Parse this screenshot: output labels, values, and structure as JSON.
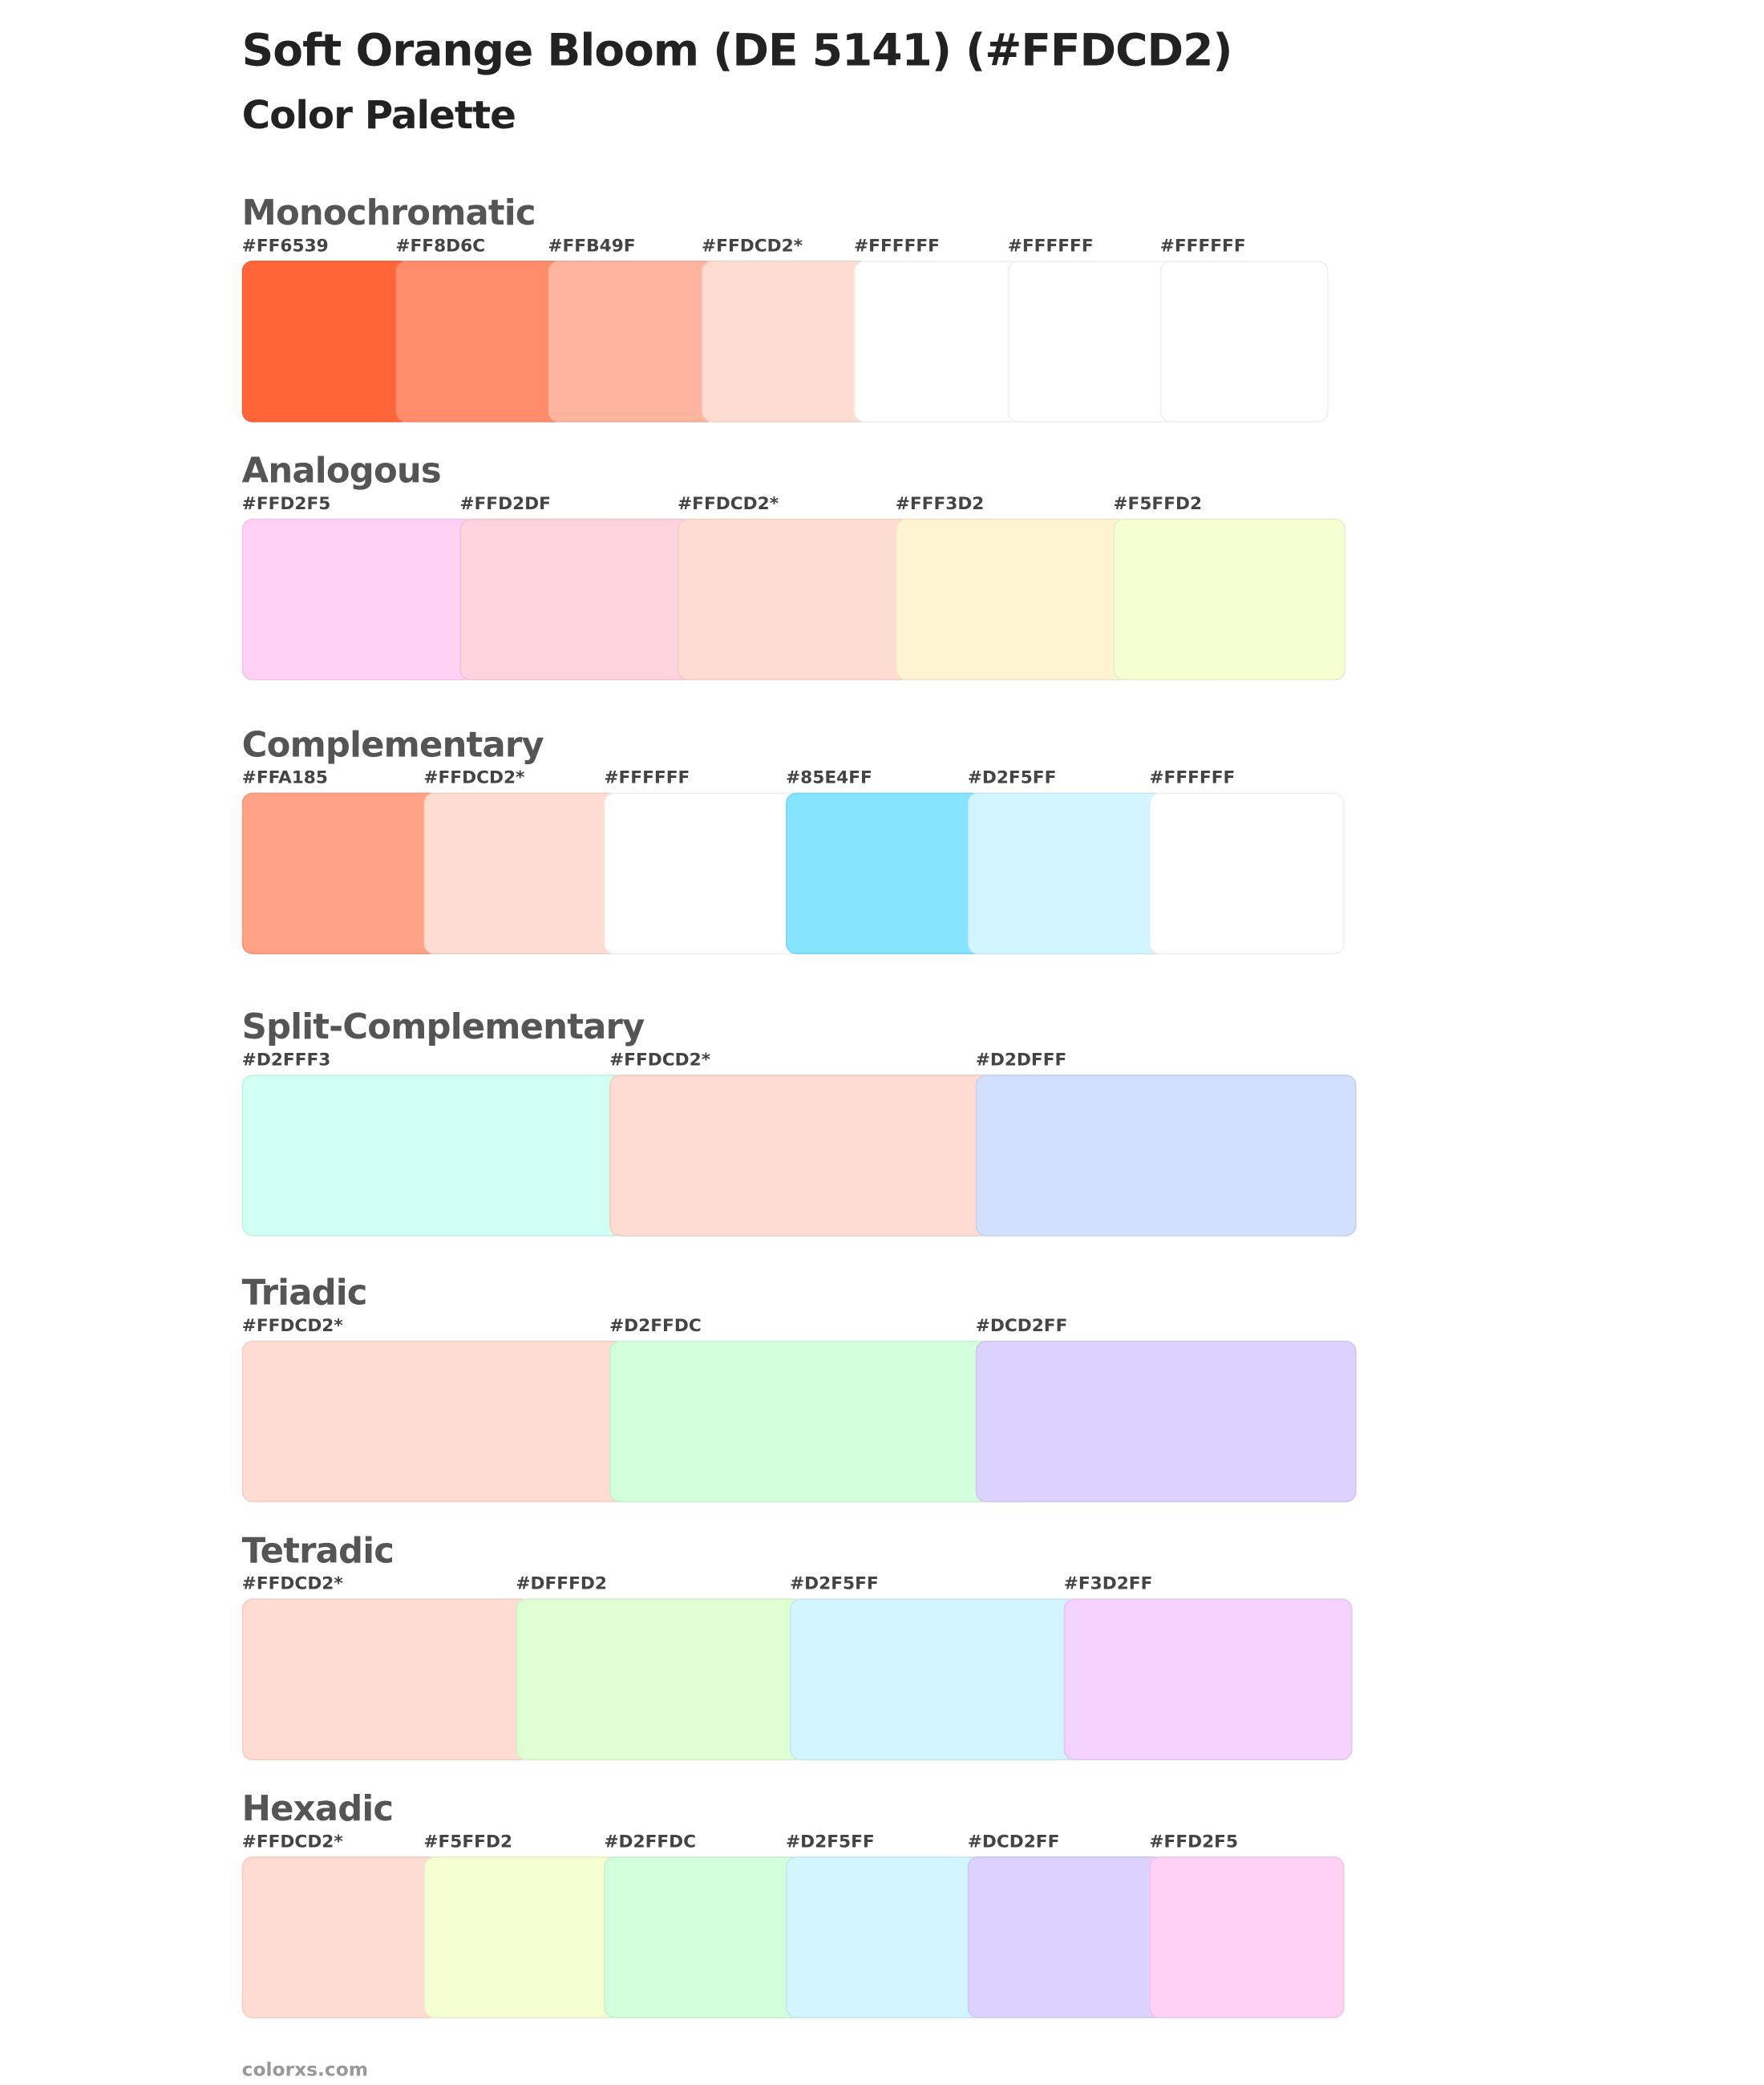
{
  "title": "Soft Orange Bloom (DE 5141) (#FFDCD2)",
  "subtitle": "Color Palette",
  "footer": "colorxs.com",
  "sections": [
    {
      "id": "monochromatic",
      "heading": "Monochromatic",
      "colors": [
        {
          "label": "#FF6539",
          "hex": "#FF6539"
        },
        {
          "label": "#FF8D6C",
          "hex": "#FF8D6C"
        },
        {
          "label": "#FFB49F",
          "hex": "#FFB49F"
        },
        {
          "label": "#FFDCD2*",
          "hex": "#FFDCD2"
        },
        {
          "label": "#FFFFFF",
          "hex": "#FFFFFF"
        },
        {
          "label": "#FFFFFF",
          "hex": "#FFFFFF"
        },
        {
          "label": "#FFFFFF",
          "hex": "#FFFFFF"
        }
      ]
    },
    {
      "id": "analogous",
      "heading": "Analogous",
      "colors": [
        {
          "label": "#FFD2F5",
          "hex": "#FFD2F5"
        },
        {
          "label": "#FFD2DF",
          "hex": "#FFD2DF"
        },
        {
          "label": "#FFDCD2*",
          "hex": "#FFDCD2"
        },
        {
          "label": "#FFF3D2",
          "hex": "#FFF3D2"
        },
        {
          "label": "#F5FFD2",
          "hex": "#F5FFD2"
        }
      ]
    },
    {
      "id": "complementary",
      "heading": "Complementary",
      "colors": [
        {
          "label": "#FFA185",
          "hex": "#FFA185"
        },
        {
          "label": "#FFDCD2*",
          "hex": "#FFDCD2"
        },
        {
          "label": "#FFFFFF",
          "hex": "#FFFFFF"
        },
        {
          "label": "#85E4FF",
          "hex": "#85E4FF"
        },
        {
          "label": "#D2F5FF",
          "hex": "#D2F5FF"
        },
        {
          "label": "#FFFFFF",
          "hex": "#FFFFFF"
        }
      ]
    },
    {
      "id": "split-complementary",
      "heading": "Split-Complementary",
      "colors": [
        {
          "label": "#D2FFF3",
          "hex": "#D2FFF3"
        },
        {
          "label": "#FFDCD2*",
          "hex": "#FFDCD2"
        },
        {
          "label": "#D2DFFF",
          "hex": "#D2DFFF"
        }
      ]
    },
    {
      "id": "triadic",
      "heading": "Triadic",
      "colors": [
        {
          "label": "#FFDCD2*",
          "hex": "#FFDCD2"
        },
        {
          "label": "#D2FFDC",
          "hex": "#D2FFDC"
        },
        {
          "label": "#DCD2FF",
          "hex": "#DCD2FF"
        }
      ]
    },
    {
      "id": "tetradic",
      "heading": "Tetradic",
      "colors": [
        {
          "label": "#FFDCD2*",
          "hex": "#FFDCD2"
        },
        {
          "label": "#DFFFD2",
          "hex": "#DFFFD2"
        },
        {
          "label": "#D2F5FF",
          "hex": "#D2F5FF"
        },
        {
          "label": "#F3D2FF",
          "hex": "#F3D2FF"
        }
      ]
    },
    {
      "id": "hexadic",
      "heading": "Hexadic",
      "colors": [
        {
          "label": "#FFDCD2*",
          "hex": "#FFDCD2"
        },
        {
          "label": "#F5FFD2",
          "hex": "#F5FFD2"
        },
        {
          "label": "#D2FFDC",
          "hex": "#D2FFDC"
        },
        {
          "label": "#D2F5FF",
          "hex": "#D2F5FF"
        },
        {
          "label": "#DCD2FF",
          "hex": "#DCD2FF"
        },
        {
          "label": "#FFD2F5",
          "hex": "#FFD2F5"
        }
      ]
    }
  ]
}
